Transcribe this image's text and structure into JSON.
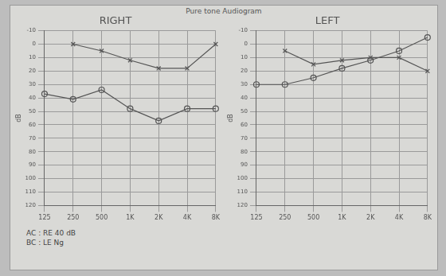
{
  "title": "Pure tone Audiogram",
  "notes": [
    "AC : RE 40 dB",
    "BC : LE Ng"
  ],
  "chart_data": [
    {
      "type": "line",
      "title": "RIGHT",
      "ylabel": "dB",
      "categories": [
        "125",
        "250",
        "500",
        "1K",
        "2K",
        "4K",
        "8K"
      ],
      "series": [
        {
          "color": "#555555",
          "marker": "x",
          "line_style": "solid",
          "values": [
            null,
            0,
            5,
            12,
            18,
            18,
            0
          ]
        },
        {
          "color": "#555555",
          "marker": "circle",
          "line_style": "solid",
          "values": [
            37,
            41,
            34,
            48,
            57,
            48,
            48
          ]
        }
      ],
      "ylim": [
        -10,
        120
      ],
      "yticks": [
        -10,
        0,
        10,
        20,
        30,
        40,
        50,
        60,
        70,
        80,
        90,
        100,
        110,
        120
      ],
      "grid": true
    },
    {
      "type": "line",
      "title": "LEFT",
      "ylabel": "dB",
      "categories": [
        "125",
        "250",
        "500",
        "1K",
        "2K",
        "4K",
        "8K"
      ],
      "series": [
        {
          "color": "#555555",
          "marker": "x",
          "line_style": "solid",
          "values": [
            null,
            5,
            15,
            12,
            10,
            10,
            20
          ]
        },
        {
          "color": "#555555",
          "marker": "circle",
          "line_style": "solid",
          "values": [
            30,
            30,
            25,
            18,
            12,
            5,
            -5
          ]
        }
      ],
      "ylim": [
        -10,
        120
      ],
      "yticks": [
        -10,
        0,
        10,
        20,
        30,
        40,
        50,
        60,
        70,
        80,
        90,
        100,
        110,
        120
      ],
      "grid": true
    }
  ]
}
